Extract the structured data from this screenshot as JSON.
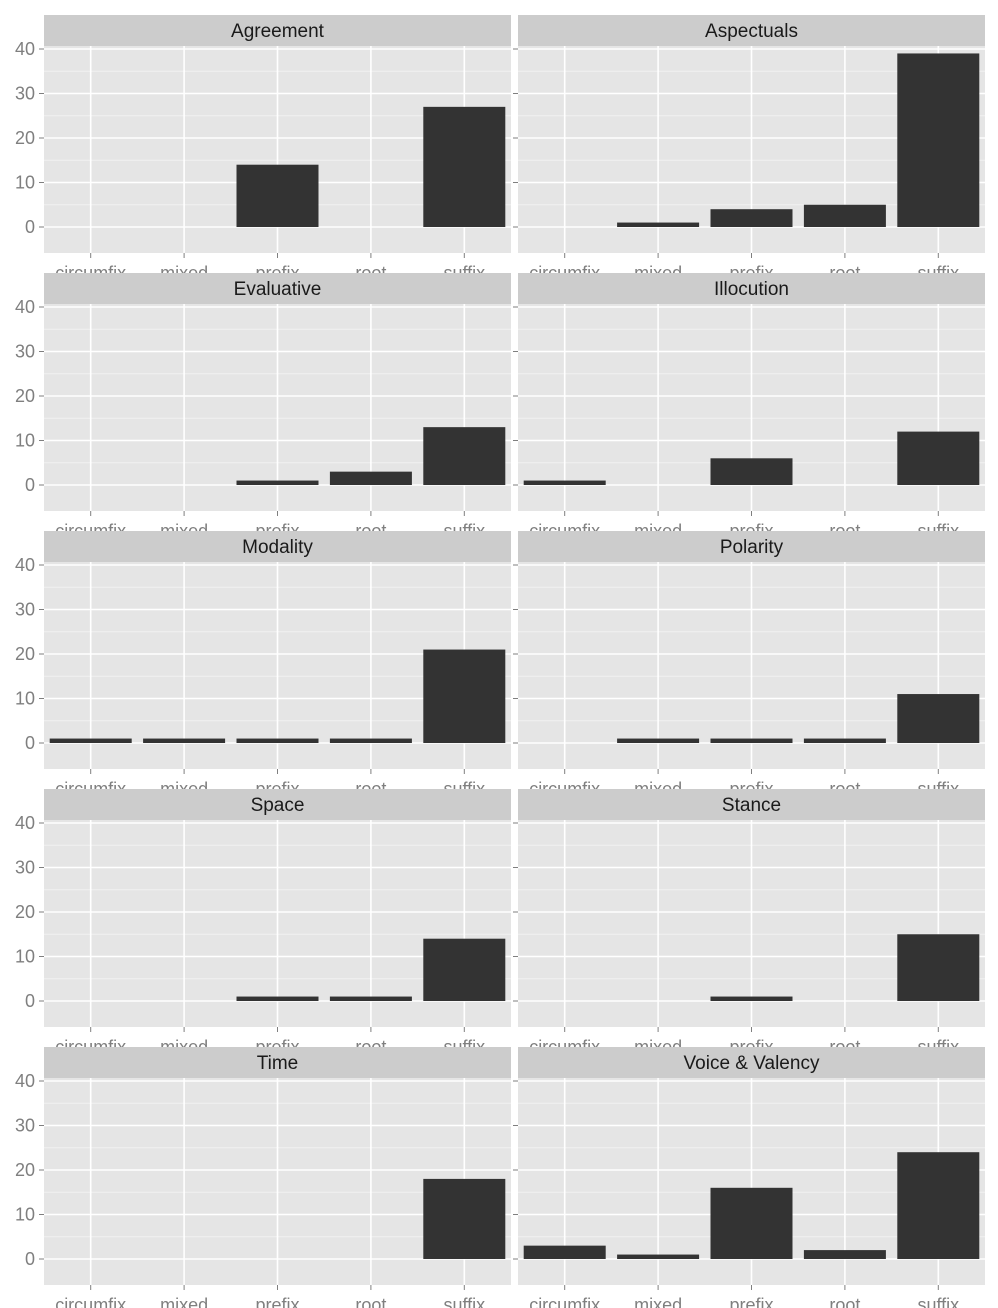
{
  "chart_data": {
    "type": "bar",
    "layout": "facet-grid",
    "categories": [
      "circumfix",
      "mixed",
      "prefix",
      "root",
      "suffix"
    ],
    "y_ticks": [
      0,
      10,
      20,
      30,
      40
    ],
    "ylim": [
      -2,
      44
    ],
    "grid": true,
    "bar_color": "#333333",
    "panel_background": "#e5e5e5",
    "strip_background": "#cccccc",
    "facets": [
      {
        "title": "Agreement",
        "values": [
          0,
          0,
          14,
          0,
          27
        ]
      },
      {
        "title": "Aspectuals",
        "values": [
          0,
          1,
          4,
          5,
          39
        ]
      },
      {
        "title": "Evaluative",
        "values": [
          0,
          0,
          1,
          3,
          13
        ]
      },
      {
        "title": "Illocution",
        "values": [
          1,
          0,
          6,
          0,
          12
        ]
      },
      {
        "title": "Modality",
        "values": [
          1,
          1,
          1,
          1,
          21
        ]
      },
      {
        "title": "Polarity",
        "values": [
          0,
          1,
          1,
          1,
          11
        ]
      },
      {
        "title": "Space",
        "values": [
          0,
          0,
          1,
          1,
          14
        ]
      },
      {
        "title": "Stance",
        "values": [
          0,
          0,
          1,
          0,
          15
        ]
      },
      {
        "title": "Time",
        "values": [
          0,
          0,
          0,
          0,
          18
        ]
      },
      {
        "title": "Voice & Valency",
        "values": [
          3,
          1,
          16,
          2,
          24
        ]
      }
    ]
  }
}
